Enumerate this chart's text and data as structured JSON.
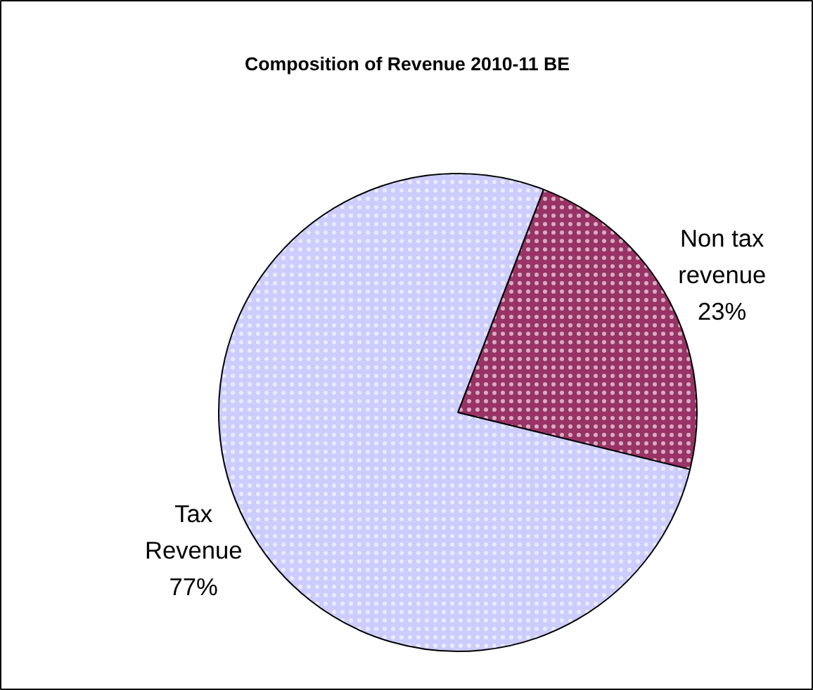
{
  "chart_data": {
    "type": "pie",
    "title": "Composition of Revenue 2010-11 BE",
    "categories": [
      "Non tax revenue",
      "Tax Revenue"
    ],
    "values": [
      23,
      77
    ],
    "colors": [
      "#993366",
      "#ccccff"
    ],
    "value_labels": [
      "23%",
      "77%"
    ]
  }
}
